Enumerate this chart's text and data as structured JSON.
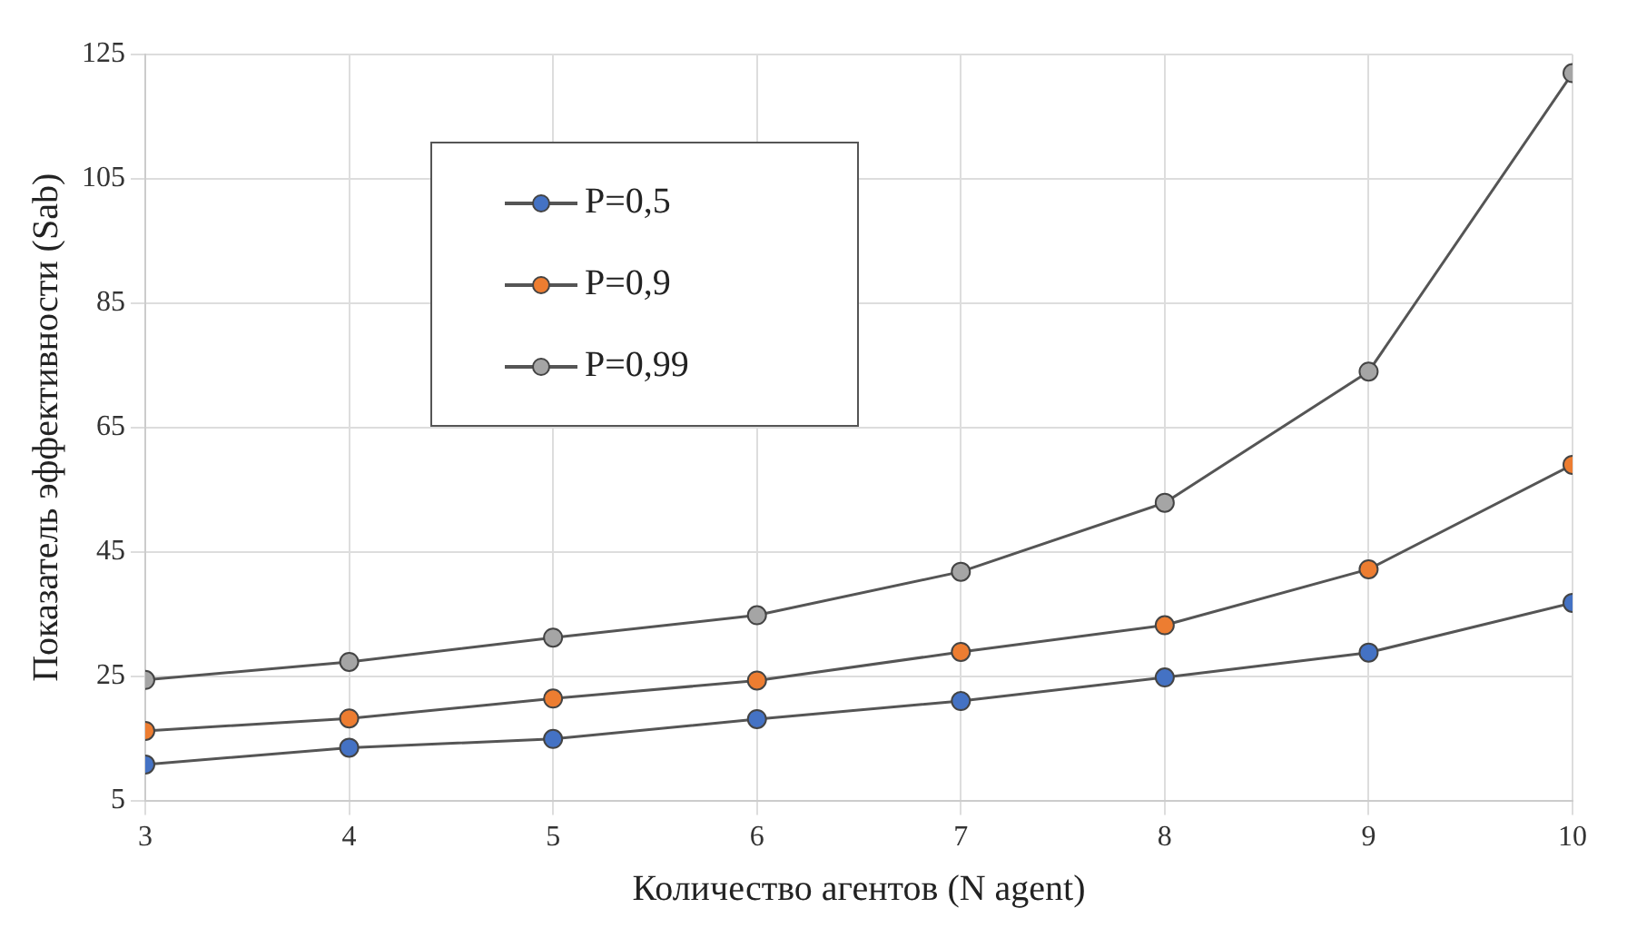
{
  "chart_data": {
    "type": "line",
    "xlabel": "Количество агентов (N agent)",
    "ylabel": "Показатель эффективности (Sab)",
    "x": [
      3,
      4,
      5,
      6,
      7,
      8,
      9,
      10
    ],
    "series": [
      {
        "name": "P=0,5",
        "color": "#4472c4",
        "values": [
          10.8,
          13.5,
          14.9,
          18.1,
          21.0,
          24.8,
          28.8,
          36.8
        ]
      },
      {
        "name": "P=0,9",
        "color": "#ed7d31",
        "values": [
          16.2,
          18.2,
          21.4,
          24.3,
          28.9,
          33.2,
          42.2,
          59.0
        ]
      },
      {
        "name": "P=0,99",
        "color": "#a5a5a5",
        "values": [
          24.4,
          27.3,
          31.2,
          34.8,
          41.8,
          52.9,
          74.0,
          122.0
        ]
      }
    ],
    "xlim": [
      3,
      10
    ],
    "xticks": [
      3,
      4,
      5,
      6,
      7,
      8,
      9,
      10
    ],
    "ylim": [
      5,
      125
    ],
    "yticks": [
      5,
      25,
      45,
      65,
      85,
      105,
      125
    ],
    "grid": true,
    "legend": "top left",
    "marker": "circle",
    "line_style": "solid"
  }
}
